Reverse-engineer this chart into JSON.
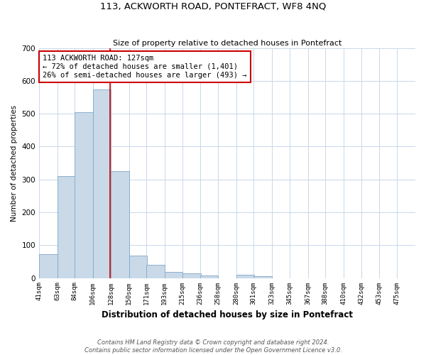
{
  "title": "113, ACKWORTH ROAD, PONTEFRACT, WF8 4NQ",
  "subtitle": "Size of property relative to detached houses in Pontefract",
  "xlabel": "Distribution of detached houses by size in Pontefract",
  "ylabel": "Number of detached properties",
  "bin_labels": [
    "41sqm",
    "63sqm",
    "84sqm",
    "106sqm",
    "128sqm",
    "150sqm",
    "171sqm",
    "193sqm",
    "215sqm",
    "236sqm",
    "258sqm",
    "280sqm",
    "301sqm",
    "323sqm",
    "345sqm",
    "367sqm",
    "388sqm",
    "410sqm",
    "432sqm",
    "453sqm",
    "475sqm"
  ],
  "bin_edges": [
    41,
    63,
    84,
    106,
    128,
    150,
    171,
    193,
    215,
    236,
    258,
    280,
    301,
    323,
    345,
    367,
    388,
    410,
    432,
    453,
    475
  ],
  "bar_values": [
    72,
    310,
    505,
    575,
    325,
    68,
    40,
    18,
    15,
    8,
    0,
    10,
    5,
    0,
    0,
    0,
    0,
    0,
    0,
    0
  ],
  "bar_color": "#c9d9e8",
  "bar_edge_color": "#7fa8c8",
  "property_size": 127,
  "vline_x": 127,
  "vline_color": "#cc0000",
  "annotation_line1": "113 ACKWORTH ROAD: 127sqm",
  "annotation_line2": "← 72% of detached houses are smaller (1,401)",
  "annotation_line3": "26% of semi-detached houses are larger (493) →",
  "annotation_box_color": "#ffffff",
  "annotation_box_edge_color": "#cc0000",
  "ylim": [
    0,
    700
  ],
  "yticks": [
    0,
    100,
    200,
    300,
    400,
    500,
    600,
    700
  ],
  "footer_line1": "Contains HM Land Registry data © Crown copyright and database right 2024.",
  "footer_line2": "Contains public sector information licensed under the Open Government Licence v3.0.",
  "background_color": "#ffffff",
  "grid_color": "#c8d8e8"
}
